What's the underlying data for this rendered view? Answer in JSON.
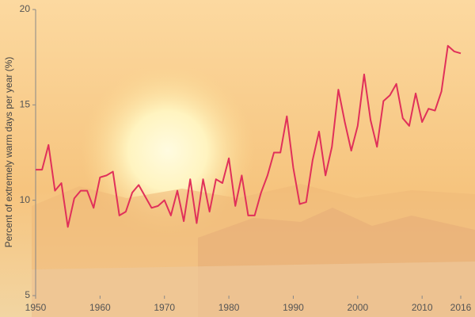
{
  "chart_data": {
    "type": "line",
    "y_label": "Percent of extremely warm days per year (%)",
    "x": [
      1950,
      1951,
      1952,
      1953,
      1954,
      1955,
      1956,
      1957,
      1958,
      1959,
      1960,
      1961,
      1962,
      1963,
      1964,
      1965,
      1966,
      1967,
      1968,
      1969,
      1970,
      1971,
      1972,
      1973,
      1974,
      1975,
      1976,
      1977,
      1978,
      1979,
      1980,
      1981,
      1982,
      1983,
      1984,
      1985,
      1986,
      1987,
      1988,
      1989,
      1990,
      1991,
      1992,
      1993,
      1994,
      1995,
      1996,
      1997,
      1998,
      1999,
      2000,
      2001,
      2002,
      2003,
      2004,
      2005,
      2006,
      2007,
      2008,
      2009,
      2010,
      2011,
      2012,
      2013,
      2014,
      2015,
      2016
    ],
    "series": [
      {
        "color": "#e0305a",
        "values": [
          11.6,
          11.6,
          12.9,
          10.5,
          10.9,
          8.6,
          10.1,
          10.5,
          10.5,
          9.6,
          11.2,
          11.3,
          11.5,
          9.2,
          9.4,
          10.4,
          10.8,
          10.2,
          9.6,
          9.7,
          10.0,
          9.2,
          10.5,
          8.9,
          11.1,
          8.8,
          11.1,
          9.4,
          11.1,
          10.9,
          12.2,
          9.7,
          11.3,
          9.2,
          9.2,
          10.4,
          11.3,
          12.5,
          12.5,
          14.4,
          11.7,
          9.8,
          9.9,
          12.1,
          13.6,
          11.3,
          12.8,
          15.8,
          14.1,
          12.6,
          13.9,
          16.6,
          14.2,
          12.8,
          15.2,
          15.5,
          16.1,
          14.3,
          13.9,
          15.6,
          14.1,
          14.8,
          14.7,
          15.7,
          18.1,
          17.8,
          17.7
        ]
      }
    ],
    "xlim": [
      1950,
      2016
    ],
    "xticks": [
      1950,
      1960,
      1970,
      1980,
      1990,
      2000,
      2010,
      2016
    ],
    "ylim": [
      5,
      20
    ],
    "yticks": [
      5,
      10,
      15,
      20
    ]
  }
}
